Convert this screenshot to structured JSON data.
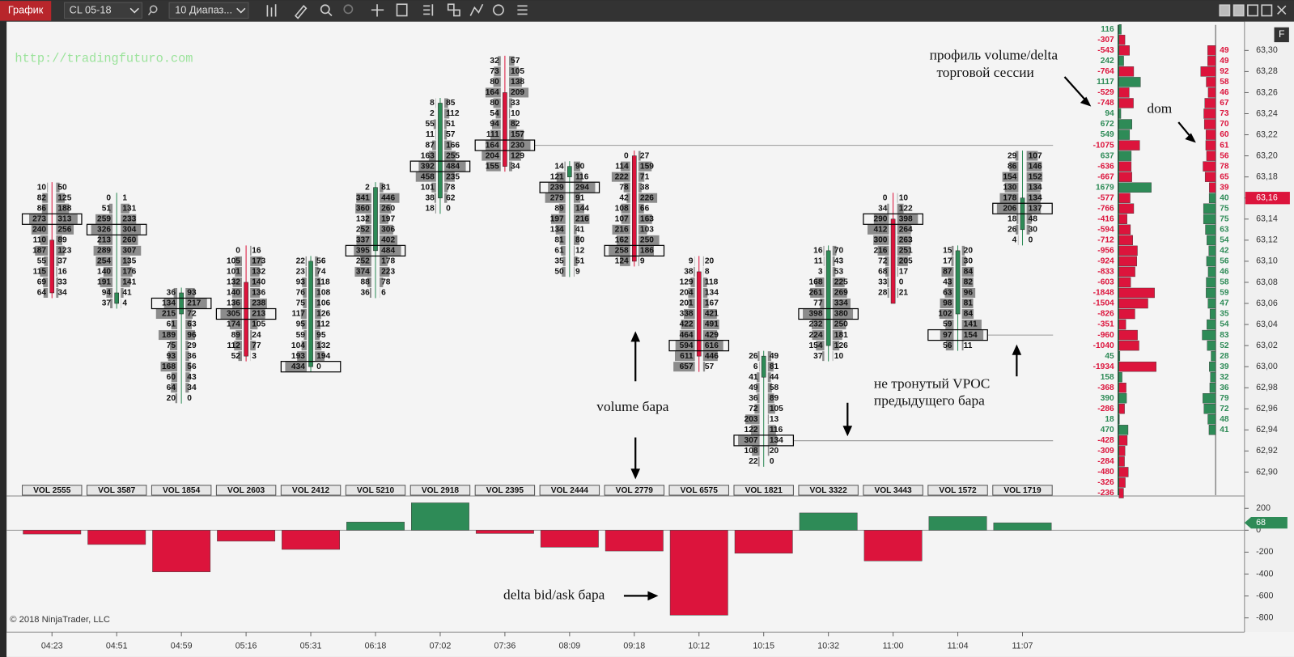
{
  "toolbar": {
    "tab": "График",
    "instrument": "CL 05-18",
    "period": "10 Диапаз..."
  },
  "watermark": "http://tradingfuturo.com",
  "copyright": "© 2018 NinjaTrader, LLC",
  "corner_button": "F",
  "annotations": {
    "profile": [
      "профиль volume/delta",
      "торговой сессии"
    ],
    "dom": "dom",
    "volume": "volume бара",
    "vpoc": [
      "не тронутый VPOC",
      "предыдущего бара"
    ],
    "delta": "delta bid/ask бара"
  },
  "price_axis": {
    "ylim": [
      62.88,
      63.32
    ],
    "current": {
      "value": 63.16,
      "label": "63,16"
    },
    "yticks": [
      {
        "value": 63.3,
        "label": "63,30"
      },
      {
        "value": 63.28,
        "label": "63,28"
      },
      {
        "value": 63.26,
        "label": "63,26"
      },
      {
        "value": 63.24,
        "label": "63,24"
      },
      {
        "value": 63.22,
        "label": "63,22"
      },
      {
        "value": 63.2,
        "label": "63,20"
      },
      {
        "value": 63.18,
        "label": "63,18"
      },
      {
        "value": 63.16,
        "label": "63,16"
      },
      {
        "value": 63.14,
        "label": "63,14"
      },
      {
        "value": 63.12,
        "label": "63,12"
      },
      {
        "value": 63.1,
        "label": "63,10"
      },
      {
        "value": 63.08,
        "label": "63,08"
      },
      {
        "value": 63.06,
        "label": "63,06"
      },
      {
        "value": 63.04,
        "label": "63,04"
      },
      {
        "value": 63.02,
        "label": "63,02"
      },
      {
        "value": 63,
        "label": "63,00"
      },
      {
        "value": 62.98,
        "label": "62,98"
      },
      {
        "value": 62.96,
        "label": "62,96"
      },
      {
        "value": 62.94,
        "label": "62,94"
      },
      {
        "value": 62.92,
        "label": "62,92"
      },
      {
        "value": 62.9,
        "label": "62,90"
      }
    ]
  },
  "footprint": {
    "volume_labels": [
      "VOL 2555",
      "VOL 3587",
      "VOL 1854",
      "VOL 2603",
      "VOL 2412",
      "VOL 5210",
      "VOL 2918",
      "VOL 2395",
      "VOL 2444",
      "VOL 2779",
      "VOL 6575",
      "VOL 1821",
      "VOL 3322",
      "VOL 3443",
      "VOL 1572",
      "VOL 1719"
    ],
    "bars": [
      {
        "top": 63.17,
        "open": 63.12,
        "close": 63.07,
        "bid": [
          10,
          82,
          86,
          273,
          240,
          110,
          187,
          55,
          115,
          69,
          64
        ],
        "ask": [
          50,
          125,
          188,
          313,
          256,
          89,
          123,
          37,
          16,
          33,
          34
        ]
      },
      {
        "top": 63.16,
        "open": 63.06,
        "close": 63.07,
        "bid": [
          0,
          51,
          259,
          326,
          213,
          289,
          254,
          140,
          191,
          94,
          37
        ],
        "ask": [
          1,
          131,
          233,
          304,
          260,
          307,
          135,
          176,
          141,
          41,
          4
        ]
      },
      {
        "top": 63.07,
        "open": 63.05,
        "close": 63.07,
        "bid": [
          36,
          134,
          215,
          61,
          189,
          75,
          93,
          168,
          60,
          64,
          20
        ],
        "ask": [
          93,
          217,
          72,
          63,
          96,
          29,
          36,
          56,
          43,
          34,
          0
        ]
      },
      {
        "top": 63.11,
        "open": 63.08,
        "close": 63.01,
        "bid": [
          0,
          105,
          101,
          132,
          140,
          136,
          305,
          174,
          89,
          112,
          52
        ],
        "ask": [
          16,
          173,
          132,
          140,
          136,
          238,
          213,
          105,
          24,
          77,
          3
        ]
      },
      {
        "top": 63.1,
        "open": 63.0,
        "close": 63.1,
        "bid": [
          22,
          23,
          93,
          76,
          75,
          117,
          95,
          59,
          104,
          193,
          434
        ],
        "ask": [
          56,
          74,
          118,
          108,
          106,
          126,
          112,
          95,
          132,
          194,
          0
        ]
      },
      {
        "top": 63.17,
        "open": 63.11,
        "close": 63.17,
        "bid": [
          2,
          341,
          360,
          132,
          252,
          337,
          395,
          252,
          374,
          88,
          36
        ],
        "ask": [
          81,
          446,
          260,
          197,
          306,
          402,
          484,
          178,
          223,
          78,
          6
        ]
      },
      {
        "top": 63.25,
        "open": 63.16,
        "close": 63.25,
        "bid": [
          8,
          2,
          55,
          11,
          87,
          163,
          392,
          458,
          101,
          38,
          18
        ],
        "ask": [
          85,
          112,
          51,
          57,
          166,
          255,
          484,
          235,
          78,
          62,
          0
        ]
      },
      {
        "top": 63.29,
        "open": 63.26,
        "close": 63.19,
        "bid": [
          32,
          73,
          80,
          164,
          80,
          54,
          94,
          111,
          164,
          204,
          155
        ],
        "ask": [
          57,
          105,
          138,
          209,
          33,
          10,
          82,
          157,
          230,
          129,
          34
        ]
      },
      {
        "top": 63.19,
        "open": 63.18,
        "close": 63.19,
        "bid": [
          14,
          121,
          239,
          279,
          89,
          197,
          134,
          81,
          61,
          35,
          50
        ],
        "ask": [
          90,
          116,
          294,
          91,
          144,
          216,
          41,
          80,
          12,
          51,
          9
        ]
      },
      {
        "top": 63.2,
        "open": 63.2,
        "close": 63.1,
        "bid": [
          0,
          114,
          222,
          78,
          42,
          108,
          107,
          216,
          162,
          258,
          124
        ],
        "ask": [
          27,
          159,
          71,
          38,
          226,
          66,
          163,
          103,
          250,
          186,
          9
        ]
      },
      {
        "top": 63.1,
        "open": 63.09,
        "close": 63.01,
        "bid": [
          9,
          38,
          129,
          204,
          201,
          338,
          422,
          464,
          594,
          611,
          657
        ],
        "ask": [
          20,
          8,
          118,
          134,
          167,
          421,
          491,
          429,
          616,
          446,
          57
        ]
      },
      {
        "top": 63.01,
        "open": 62.99,
        "close": 63.01,
        "bid": [
          26,
          6,
          41,
          49,
          36,
          72,
          203,
          122,
          307,
          108,
          22
        ],
        "ask": [
          49,
          81,
          44,
          58,
          89,
          105,
          13,
          116,
          134,
          20,
          0
        ]
      },
      {
        "top": 63.11,
        "open": 63.02,
        "close": 63.11,
        "bid": [
          16,
          11,
          3,
          168,
          261,
          77,
          398,
          232,
          224,
          154,
          37
        ],
        "ask": [
          70,
          43,
          53,
          225,
          269,
          334,
          380,
          250,
          181,
          126,
          10
        ]
      },
      {
        "top": 63.16,
        "open": 63.14,
        "close": 63.06,
        "bid": [
          0,
          34,
          290,
          412,
          300,
          216,
          72,
          68,
          33,
          28
        ],
        "ask": [
          10,
          122,
          398,
          264,
          263,
          251,
          205,
          17,
          0,
          21
        ]
      },
      {
        "top": 63.11,
        "open": 63.05,
        "close": 63.11,
        "bid": [
          15,
          17,
          87,
          43,
          63,
          98,
          102,
          59,
          97,
          56
        ],
        "ask": [
          20,
          30,
          84,
          82,
          96,
          81,
          84,
          141,
          154,
          11
        ]
      },
      {
        "top": 63.2,
        "open": 63.13,
        "close": 63.16,
        "bid": [
          29,
          86,
          154,
          130,
          178,
          206,
          18,
          26,
          4
        ],
        "ask": [
          107,
          146,
          152,
          134,
          134,
          137,
          48,
          30,
          0
        ]
      }
    ]
  },
  "session_profile": {
    "top": 63.32,
    "delta": [
      116,
      -307,
      -543,
      242,
      -764,
      1117,
      -529,
      -748,
      94,
      672,
      549,
      -1075,
      637,
      -636,
      -667,
      1679,
      -577,
      -766,
      -416,
      -594,
      -712,
      -956,
      -924,
      -833,
      -603,
      -1848,
      -1504,
      -826,
      -351,
      -960,
      -1040,
      45,
      -1934,
      158,
      -368,
      390,
      -286,
      18,
      470,
      -428,
      -309,
      -284,
      -480,
      -326,
      -236
    ]
  },
  "dom": {
    "asks": [
      49,
      49,
      92,
      58,
      46,
      67,
      73,
      70,
      60,
      61,
      56,
      78,
      65,
      39
    ],
    "bids": [
      40,
      75,
      75,
      63,
      54,
      42,
      56,
      46,
      58,
      59,
      47,
      35,
      54,
      83,
      52,
      28,
      39,
      32,
      36,
      79,
      72,
      48,
      41
    ]
  },
  "chart_data": {
    "type": "bar",
    "categories": [
      "04:23",
      "04:51",
      "04:59",
      "05:16",
      "05:31",
      "06:18",
      "07:02",
      "07:36",
      "08:09",
      "09:18",
      "10:12",
      "10:15",
      "10:32",
      "11:00",
      "11:04",
      "11:07"
    ],
    "values": [
      -35,
      -130,
      -380,
      -100,
      -175,
      75,
      250,
      -30,
      -155,
      -190,
      -775,
      -210,
      158,
      -280,
      125,
      68
    ],
    "value_label": "68",
    "up_color": "#2e8b57",
    "down_color": "#dc143c",
    "ylim": [
      -900,
      320
    ],
    "yticks": [
      200,
      0,
      -200,
      -400,
      -600,
      -800
    ]
  }
}
